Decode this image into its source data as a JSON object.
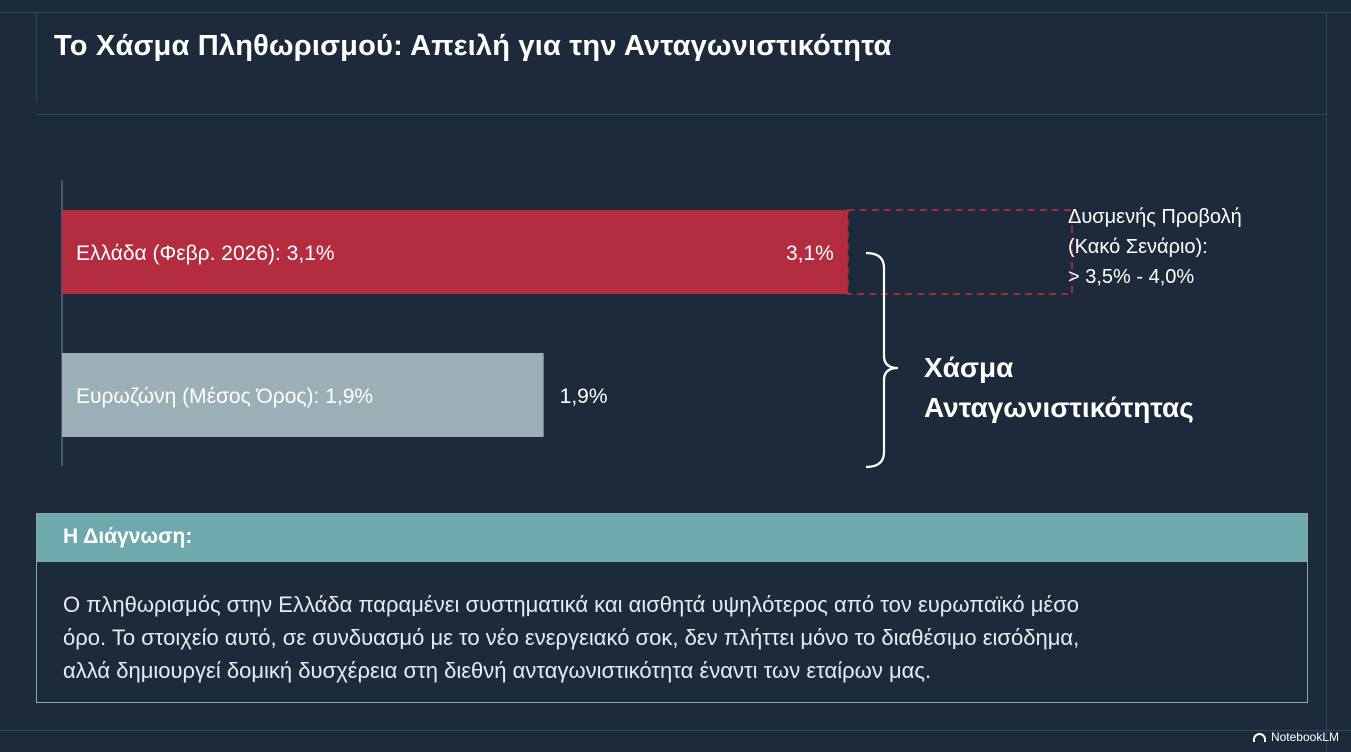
{
  "title": "Το Χάσμα Πληθωρισμού: Απειλή για την Ανταγωνιστικότητα",
  "chart_data": {
    "type": "bar",
    "orientation": "horizontal",
    "unit": "%",
    "categories": [
      "Ελλάδα (Φεβρ. 2026): 3,1%",
      "Ευρωζώνη (Μέσος Όρος): 1,9%"
    ],
    "values": [
      3.1,
      1.9
    ],
    "value_labels": [
      "3,1%",
      "1,9%"
    ],
    "xlim": [
      0,
      4.0
    ],
    "colors": [
      "#b32c3f",
      "#9ab0b6"
    ],
    "projection": {
      "range": [
        3.5,
        4.0
      ],
      "lines": [
        "Δυσμενής Προβολή",
        "(Κακό Σενάριο):",
        "> 3,5% - 4,0%"
      ]
    },
    "gap_annotation": [
      "Χάσμα",
      "Ανταγωνιστικότητας"
    ]
  },
  "diagnosis": {
    "heading": "Η Διάγνωση:",
    "lines": [
      "Ο πληθωρισμός στην Ελλάδα παραμένει συστηματικά και αισθητά υψηλότερος από τον ευρωπαϊκό μέσο",
      "όρο. Το στοιχείο αυτό, σε συνδυασμό με το νέο ενεργειακό σοκ, δεν πλήττει μόνο το διαθέσιμο εισόδημα,",
      "αλλά δημιουργεί δομική δυσχέρεια στη διεθνή ανταγωνιστικότητα έναντι των εταίρων μας."
    ],
    "header_color": "#6ea9ae"
  },
  "watermark": {
    "icon": "notebooklm-icon",
    "text": "NotebookLM"
  }
}
